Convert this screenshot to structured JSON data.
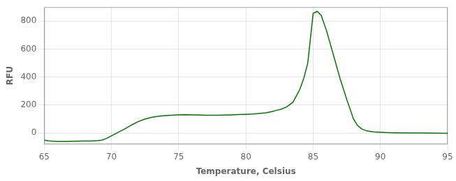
{
  "chart_data": {
    "type": "line",
    "xlabel": "Temperature, Celsius",
    "ylabel": "RFU",
    "x": [
      65.0,
      65.3,
      65.6,
      66.0,
      66.5,
      67.0,
      67.5,
      68.0,
      68.5,
      69.0,
      69.3,
      69.6,
      70.0,
      70.5,
      71.0,
      71.5,
      72.0,
      72.5,
      73.0,
      73.5,
      74.0,
      74.5,
      75.0,
      75.5,
      76.0,
      76.5,
      77.0,
      77.5,
      78.0,
      78.5,
      79.0,
      79.5,
      80.0,
      80.5,
      81.0,
      81.5,
      82.0,
      82.3,
      82.6,
      83.0,
      83.5,
      84.0,
      84.3,
      84.6,
      85.0,
      85.3,
      85.6,
      86.0,
      86.5,
      87.0,
      87.5,
      88.0,
      88.3,
      88.6,
      89.0,
      89.5,
      90.0,
      90.5,
      91.0,
      92.0,
      93.0,
      94.0,
      95.0
    ],
    "values": [
      -50,
      -55,
      -58,
      -60,
      -60,
      -59,
      -58,
      -57,
      -56,
      -54,
      -50,
      -40,
      -20,
      5,
      30,
      58,
      82,
      100,
      112,
      120,
      125,
      128,
      130,
      131,
      130,
      129,
      128,
      128,
      128,
      129,
      130,
      132,
      134,
      136,
      140,
      145,
      155,
      163,
      170,
      185,
      220,
      310,
      390,
      500,
      855,
      870,
      840,
      730,
      560,
      390,
      240,
      100,
      55,
      30,
      15,
      8,
      5,
      3,
      2,
      1,
      0,
      -1,
      -2
    ],
    "color": "#007700",
    "xlim": [
      65,
      95
    ],
    "ylim": [
      -80,
      900
    ],
    "xticks": [
      65,
      70,
      75,
      80,
      85,
      90,
      95
    ],
    "yticks": [
      0,
      200,
      400,
      600,
      800
    ],
    "grid": true
  }
}
